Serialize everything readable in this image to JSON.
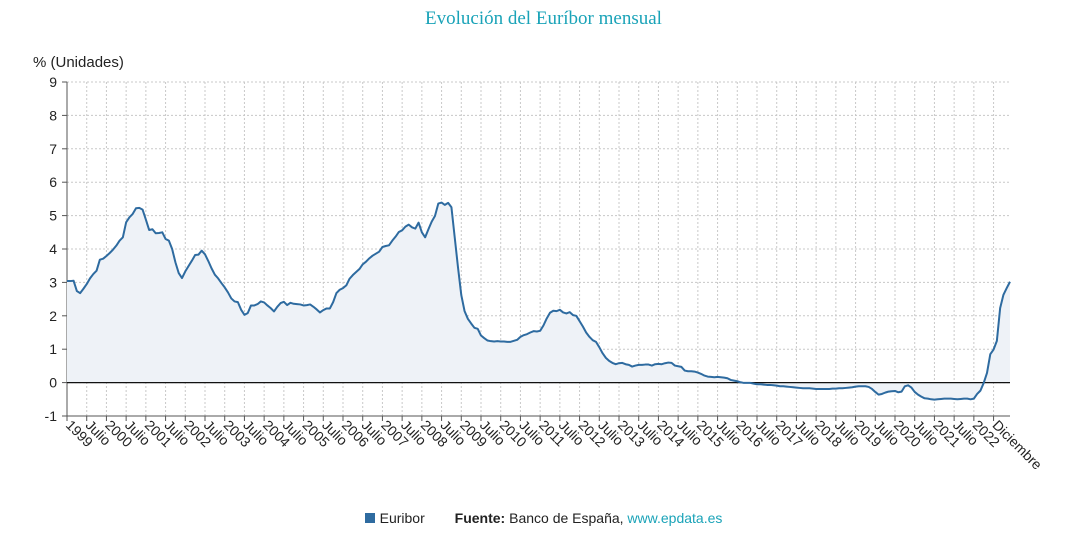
{
  "chart_data": {
    "type": "area",
    "title": "Evolución del Euríbor mensual",
    "ylabel": "% (Unidades)",
    "xlabel": "",
    "ylim": [
      -1,
      9
    ],
    "yticks": [
      -1,
      0,
      1,
      2,
      3,
      4,
      5,
      6,
      7,
      8,
      9
    ],
    "grid": true,
    "legend_position": "bottom",
    "series_color": "#2e6ba0",
    "fill_color": "#eef2f7",
    "source_label": "Fuente:",
    "source_text": "Banco de España,",
    "source_link": "www.epdata.es",
    "x_tick_labels": [
      "1999",
      "Julio",
      "2000",
      "Julio",
      "2001",
      "Julio",
      "2002",
      "Julio",
      "2003",
      "Julio",
      "2004",
      "Julio",
      "2005",
      "Julio",
      "2006",
      "Julio",
      "2007",
      "Julio",
      "2008",
      "Julio",
      "2009",
      "Julio",
      "2010",
      "Julio",
      "2011",
      "Julio",
      "2012",
      "Julio",
      "2013",
      "Julio",
      "2014",
      "Julio",
      "2015",
      "Julio",
      "2016",
      "Julio",
      "2017",
      "Julio",
      "2018",
      "Julio",
      "2019",
      "Julio",
      "2020",
      "Julio",
      "2021",
      "Julio",
      "2022",
      "Diciembre"
    ],
    "series": [
      {
        "name": "Euribor",
        "start": "1999-01",
        "end": "2022-12",
        "frequency": "monthly",
        "values": [
          3.04,
          3.04,
          3.05,
          2.74,
          2.68,
          2.81,
          2.95,
          3.12,
          3.25,
          3.35,
          3.68,
          3.71,
          3.79,
          3.88,
          3.98,
          4.1,
          4.25,
          4.35,
          4.8,
          4.95,
          5.05,
          5.22,
          5.23,
          5.18,
          4.88,
          4.57,
          4.59,
          4.47,
          4.48,
          4.5,
          4.3,
          4.25,
          4.0,
          3.6,
          3.28,
          3.13,
          3.33,
          3.49,
          3.65,
          3.82,
          3.83,
          3.95,
          3.84,
          3.64,
          3.42,
          3.23,
          3.12,
          2.98,
          2.85,
          2.7,
          2.52,
          2.43,
          2.41,
          2.18,
          2.03,
          2.08,
          2.31,
          2.31,
          2.35,
          2.43,
          2.4,
          2.31,
          2.23,
          2.13,
          2.27,
          2.38,
          2.42,
          2.32,
          2.39,
          2.36,
          2.35,
          2.34,
          2.31,
          2.32,
          2.34,
          2.27,
          2.19,
          2.1,
          2.17,
          2.22,
          2.22,
          2.41,
          2.68,
          2.78,
          2.83,
          2.91,
          3.11,
          3.22,
          3.31,
          3.4,
          3.54,
          3.62,
          3.72,
          3.8,
          3.86,
          3.92,
          4.06,
          4.09,
          4.11,
          4.25,
          4.37,
          4.51,
          4.56,
          4.67,
          4.73,
          4.65,
          4.61,
          4.79,
          4.5,
          4.35,
          4.59,
          4.82,
          4.99,
          5.36,
          5.39,
          5.32,
          5.38,
          5.25,
          4.35,
          3.45,
          2.62,
          2.14,
          1.91,
          1.77,
          1.64,
          1.61,
          1.41,
          1.33,
          1.26,
          1.24,
          1.23,
          1.24,
          1.23,
          1.23,
          1.22,
          1.22,
          1.25,
          1.28,
          1.37,
          1.42,
          1.45,
          1.5,
          1.54,
          1.53,
          1.55,
          1.71,
          1.92,
          2.09,
          2.15,
          2.14,
          2.18,
          2.1,
          2.07,
          2.11,
          2.02,
          2.0,
          1.84,
          1.68,
          1.5,
          1.37,
          1.27,
          1.22,
          1.06,
          0.88,
          0.74,
          0.65,
          0.59,
          0.55,
          0.58,
          0.59,
          0.55,
          0.53,
          0.48,
          0.51,
          0.53,
          0.53,
          0.54,
          0.54,
          0.51,
          0.55,
          0.56,
          0.55,
          0.58,
          0.6,
          0.59,
          0.51,
          0.49,
          0.47,
          0.36,
          0.34,
          0.34,
          0.33,
          0.3,
          0.26,
          0.21,
          0.18,
          0.17,
          0.16,
          0.17,
          0.16,
          0.15,
          0.13,
          0.08,
          0.06,
          0.04,
          0.01,
          -0.01,
          -0.01,
          -0.01,
          -0.03,
          -0.05,
          -0.05,
          -0.06,
          -0.07,
          -0.07,
          -0.08,
          -0.09,
          -0.11,
          -0.11,
          -0.12,
          -0.13,
          -0.14,
          -0.15,
          -0.16,
          -0.17,
          -0.17,
          -0.17,
          -0.18,
          -0.19,
          -0.19,
          -0.19,
          -0.19,
          -0.19,
          -0.18,
          -0.18,
          -0.17,
          -0.17,
          -0.16,
          -0.15,
          -0.14,
          -0.12,
          -0.11,
          -0.11,
          -0.11,
          -0.13,
          -0.19,
          -0.28,
          -0.36,
          -0.34,
          -0.3,
          -0.27,
          -0.26,
          -0.25,
          -0.29,
          -0.27,
          -0.11,
          -0.08,
          -0.15,
          -0.28,
          -0.36,
          -0.42,
          -0.47,
          -0.48,
          -0.5,
          -0.51,
          -0.5,
          -0.49,
          -0.48,
          -0.48,
          -0.48,
          -0.49,
          -0.5,
          -0.49,
          -0.48,
          -0.48,
          -0.5,
          -0.48,
          -0.34,
          -0.24,
          -0.01,
          0.29,
          0.85,
          0.99,
          1.25,
          2.23,
          2.63,
          2.83,
          3.02
        ]
      }
    ]
  }
}
